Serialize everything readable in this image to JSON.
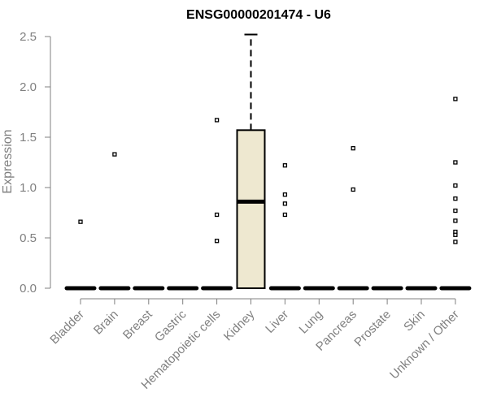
{
  "chart_data": {
    "type": "box",
    "title": "ENSG00000201474 - U6",
    "xlabel": "",
    "ylabel": "Expression",
    "ylim": [
      0,
      2.5
    ],
    "yticks": [
      "0.0",
      "0.5",
      "1.0",
      "1.5",
      "2.0",
      "2.5"
    ],
    "categories": [
      "Bladder",
      "Brain",
      "Breast",
      "Gastric",
      "Hematopoietic cells",
      "Kidney",
      "Liver",
      "Lung",
      "Pancreas",
      "Prostate",
      "Skin",
      "Unknown / Other"
    ],
    "boxes": [
      {
        "category": "Bladder",
        "min": 0,
        "q1": 0,
        "median": 0,
        "q3": 0,
        "max": 0,
        "outliers": [
          0.66
        ]
      },
      {
        "category": "Brain",
        "min": 0,
        "q1": 0,
        "median": 0,
        "q3": 0,
        "max": 0,
        "outliers": [
          1.33
        ]
      },
      {
        "category": "Breast",
        "min": 0,
        "q1": 0,
        "median": 0,
        "q3": 0,
        "max": 0,
        "outliers": []
      },
      {
        "category": "Gastric",
        "min": 0,
        "q1": 0,
        "median": 0,
        "q3": 0,
        "max": 0,
        "outliers": []
      },
      {
        "category": "Hematopoietic cells",
        "min": 0,
        "q1": 0,
        "median": 0,
        "q3": 0,
        "max": 0,
        "outliers": [
          1.67,
          0.73,
          0.47
        ]
      },
      {
        "category": "Kidney",
        "min": 0,
        "q1": 0,
        "median": 0.86,
        "q3": 1.57,
        "max": 2.52,
        "outliers": []
      },
      {
        "category": "Liver",
        "min": 0,
        "q1": 0,
        "median": 0,
        "q3": 0,
        "max": 0,
        "outliers": [
          1.22,
          0.93,
          0.84,
          0.73
        ]
      },
      {
        "category": "Lung",
        "min": 0,
        "q1": 0,
        "median": 0,
        "q3": 0,
        "max": 0,
        "outliers": []
      },
      {
        "category": "Pancreas",
        "min": 0,
        "q1": 0,
        "median": 0,
        "q3": 0,
        "max": 0,
        "outliers": [
          1.39,
          0.98
        ]
      },
      {
        "category": "Prostate",
        "min": 0,
        "q1": 0,
        "median": 0,
        "q3": 0,
        "max": 0,
        "outliers": []
      },
      {
        "category": "Skin",
        "min": 0,
        "q1": 0,
        "median": 0,
        "q3": 0,
        "max": 0,
        "outliers": []
      },
      {
        "category": "Unknown / Other",
        "min": 0,
        "q1": 0,
        "median": 0,
        "q3": 0,
        "max": 0,
        "outliers": [
          1.88,
          1.25,
          1.02,
          0.89,
          0.77,
          0.67,
          0.56,
          0.53,
          0.46
        ]
      }
    ],
    "box_fill": "#EEE8D0",
    "axis_color": "#808080",
    "grid": false,
    "legend": "none"
  }
}
